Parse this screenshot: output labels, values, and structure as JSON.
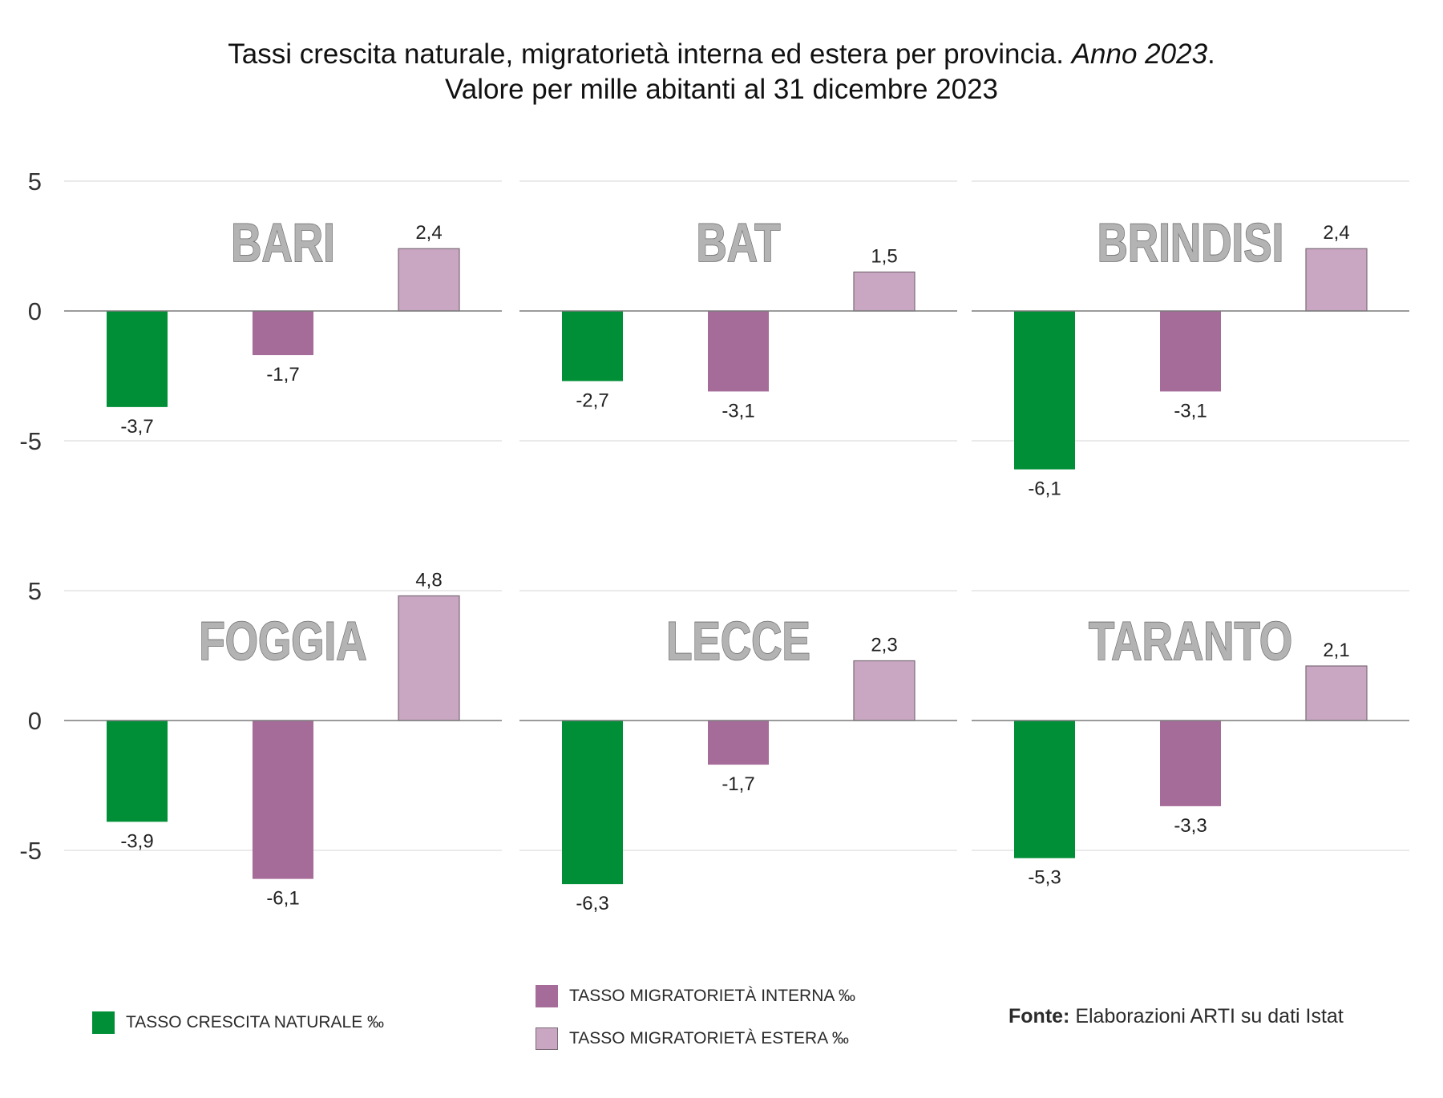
{
  "title": {
    "line1_main": "Tassi crescita naturale, migratorietà interna ed estera per provincia.",
    "line1_italic": "Anno 2023",
    "line1_end": ".",
    "line2": "Valore per mille abitanti al 31 dicembre 2023"
  },
  "colors": {
    "crescita_naturale": "#008f36",
    "migratorieta_interna": "#a66c99",
    "migratorieta_estera": "#c9a7c2",
    "panel_title_fill": "#b3b3b3",
    "panel_title_stroke": "#6b6b6b"
  },
  "legend": {
    "crescita_naturale": "TASSO CRESCITA NATURALE ‰",
    "migratorieta_interna": "TASSO MIGRATORIETÀ INTERNA ‰",
    "migratorieta_estera": "TASSO MIGRATORIETÀ ESTERA ‰"
  },
  "source": {
    "label": "Fonte:",
    "text": "Elaborazioni ARTI su dati Istat"
  },
  "chart_data": {
    "type": "bar",
    "title": "Tassi crescita naturale, migratorietà interna ed estera per provincia. Anno 2023. Valore per mille abitanti al 31 dicembre 2023",
    "xlabel": "",
    "ylabel": "",
    "ylim": [
      -5,
      5
    ],
    "yticks": [
      5,
      0,
      -5
    ],
    "ytick_labels": [
      "5",
      "0",
      "-5"
    ],
    "grid": true,
    "legend_position": "bottom",
    "series_names": [
      "TASSO CRESCITA NATURALE ‰",
      "TASSO MIGRATORIETÀ INTERNA ‰",
      "TASSO MIGRATORIETÀ ESTERA ‰"
    ],
    "panels": [
      {
        "name": "BARI",
        "values": [
          -3.7,
          -1.7,
          2.4
        ],
        "labels": [
          "-3,7",
          "-1,7",
          "2,4"
        ]
      },
      {
        "name": "BAT",
        "values": [
          -2.7,
          -3.1,
          1.5
        ],
        "labels": [
          "-2,7",
          "-3,1",
          "1,5"
        ]
      },
      {
        "name": "BRINDISI",
        "values": [
          -6.1,
          -3.1,
          2.4
        ],
        "labels": [
          "-6,1",
          "-3,1",
          "2,4"
        ]
      },
      {
        "name": "FOGGIA",
        "values": [
          -3.9,
          -6.1,
          4.8
        ],
        "labels": [
          "-3,9",
          "-6,1",
          "4,8"
        ]
      },
      {
        "name": "LECCE",
        "values": [
          -6.3,
          -1.7,
          2.3
        ],
        "labels": [
          "-6,3",
          "-1,7",
          "2,3"
        ]
      },
      {
        "name": "TARANTO",
        "values": [
          -5.3,
          -3.3,
          2.1
        ],
        "labels": [
          "-5,3",
          "-3,3",
          "2,1"
        ]
      }
    ]
  }
}
